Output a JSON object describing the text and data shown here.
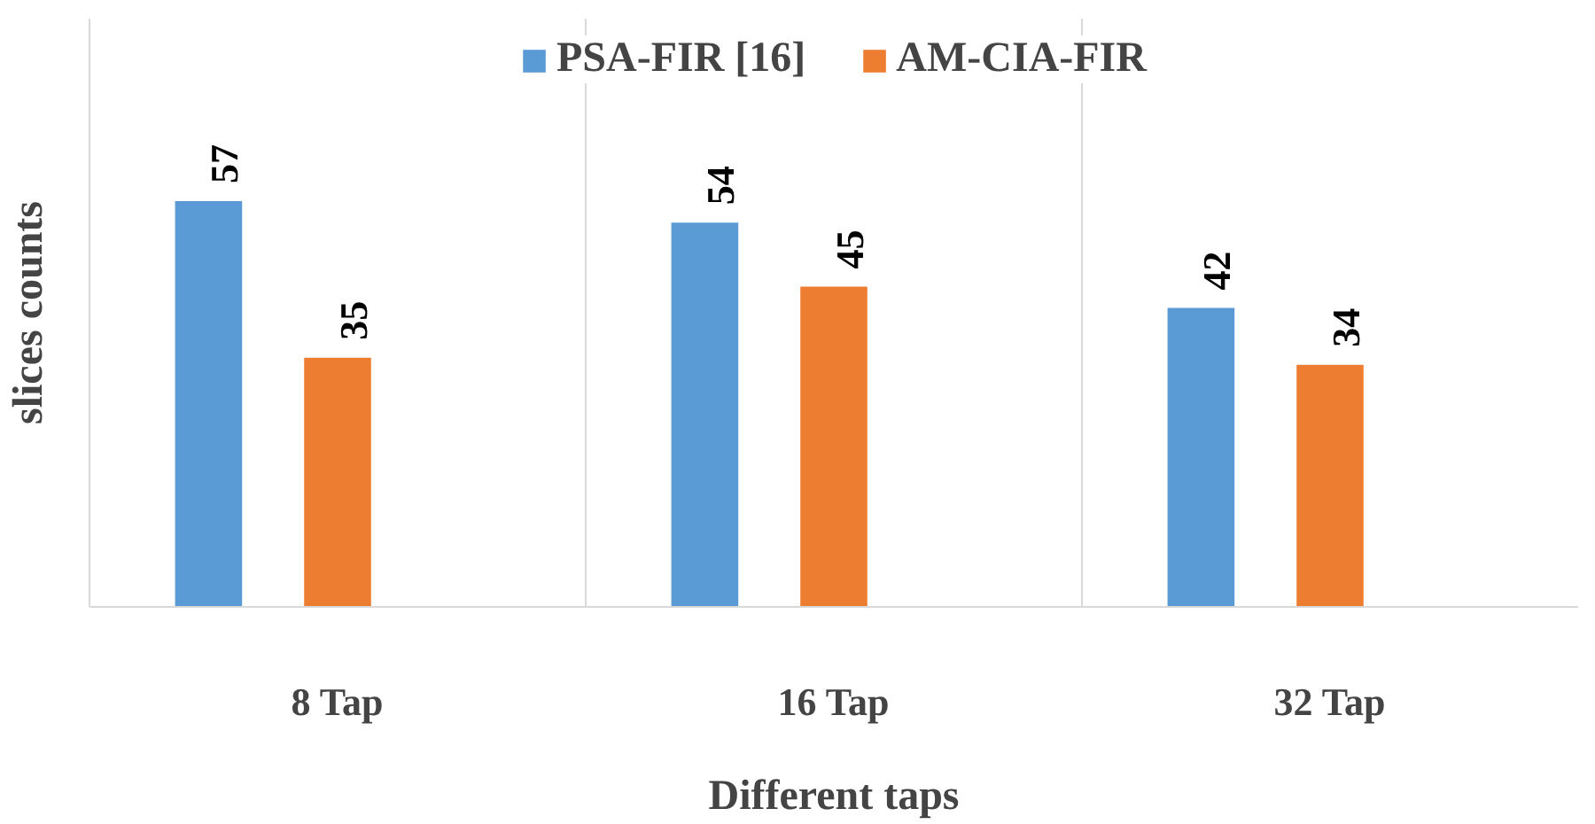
{
  "chart_data": {
    "type": "bar",
    "xlabel": "Different taps",
    "ylabel": "slices counts",
    "categories": [
      "8 Tap",
      "16 Tap",
      "32 Tap"
    ],
    "series": [
      {
        "name": "PSA-FIR [16]",
        "color": "#5b9bd5",
        "values": [
          57,
          54,
          42
        ]
      },
      {
        "name": "AM-CIA-FIR",
        "color": "#ed7d31",
        "values": [
          35,
          45,
          34
        ]
      }
    ],
    "data_labels": true,
    "grid": "x",
    "legend": "top",
    "tick_labels": "x"
  }
}
